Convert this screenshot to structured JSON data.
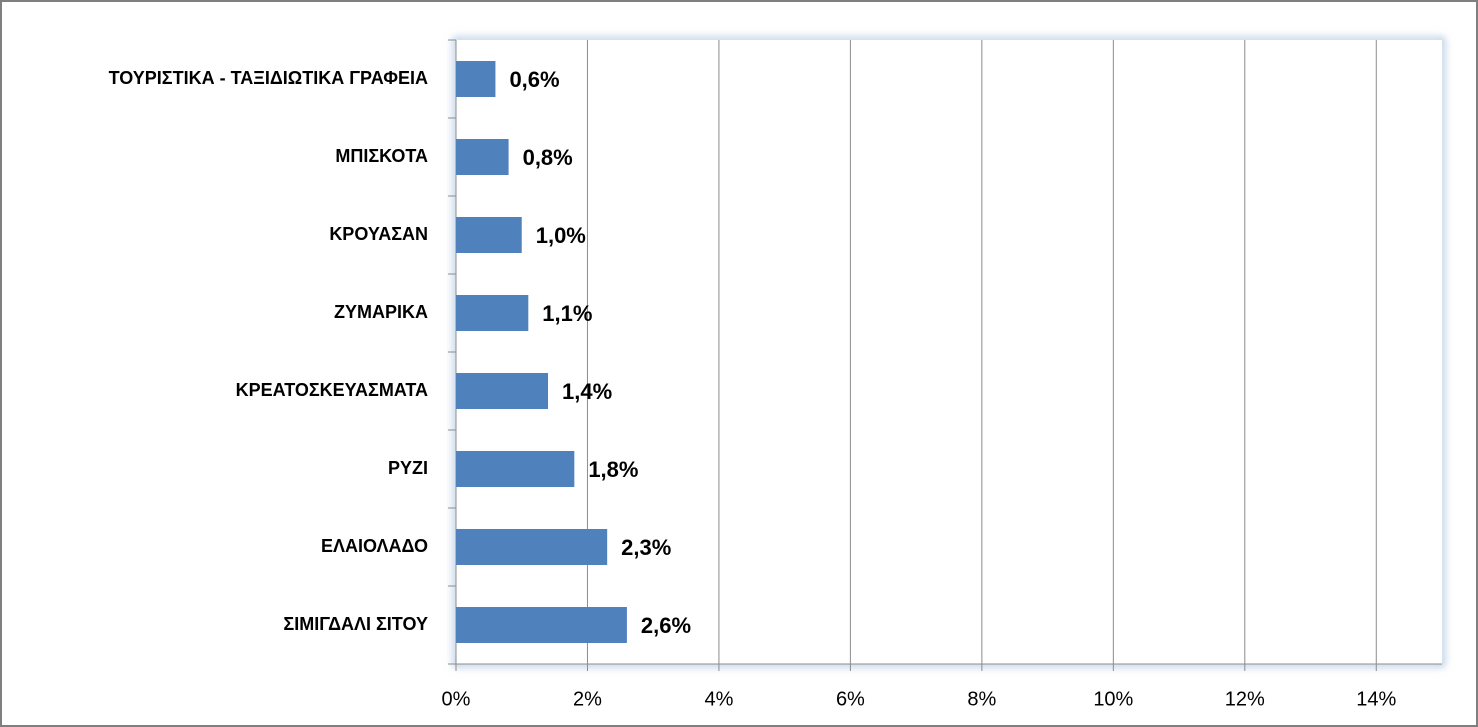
{
  "chart_data": {
    "type": "hbar",
    "categories": [
      "ΤΟΥΡΙΣΤΙΚΑ - ΤΑΞΙΔΙΩΤΙΚΑ ΓΡΑΦΕΙΑ",
      "ΜΠΙΣΚΟΤΑ",
      "ΚΡΟΥΑΣΑΝ",
      "ΖΥΜΑΡΙΚΑ",
      "ΚΡΕΑΤΟΣΚΕΥΑΣΜΑΤΑ",
      "ΡΥΖΙ",
      "ΕΛΑΙΟΛΑΔΟ",
      "ΣΙΜΙΓΔΑΛΙ ΣΙΤΟΥ"
    ],
    "values": [
      0.6,
      0.8,
      1.0,
      1.1,
      1.4,
      1.8,
      2.3,
      2.6
    ],
    "value_labels": [
      "0,6%",
      "0,8%",
      "1,0%",
      "1,1%",
      "1,4%",
      "1,8%",
      "2,3%",
      "2,6%"
    ],
    "color": "#4f81bd",
    "xlim": [
      0,
      15
    ],
    "xticks": [
      {
        "value": 0,
        "label": "0%"
      },
      {
        "value": 2,
        "label": "2%"
      },
      {
        "value": 4,
        "label": "4%"
      },
      {
        "value": 6,
        "label": "6%"
      },
      {
        "value": 8,
        "label": "8%"
      },
      {
        "value": 10,
        "label": "10%"
      },
      {
        "value": 12,
        "label": "12%"
      },
      {
        "value": 14,
        "label": "14%"
      }
    ],
    "grid": true
  }
}
